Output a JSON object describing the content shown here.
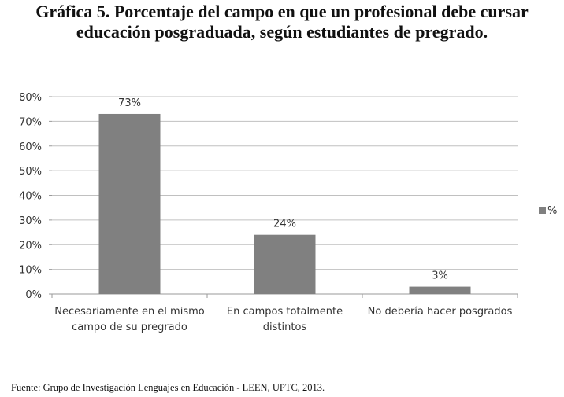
{
  "title_lines": [
    "Gráfica 5. Porcentaje del campo en que un profesional debe cursar",
    "educación posgraduada, según estudiantes de pregrado."
  ],
  "source": "Fuente: Grupo de Investigación Lenguajes en Educación - LEEN, UPTC, 2013.",
  "colors": {
    "bar": "#808080",
    "grid": "#c0c0c0",
    "axis": "#9a9a9a"
  },
  "chart_data": {
    "type": "bar",
    "categories": [
      [
        "Necesariamente en el mismo",
        "campo de su pregrado"
      ],
      [
        "En campos totalmente",
        "distintos"
      ],
      [
        "No debería hacer posgrados"
      ]
    ],
    "series": [
      {
        "name": "%",
        "values": [
          73,
          24,
          3
        ],
        "labels": [
          "73%",
          "24%",
          "3%"
        ]
      }
    ],
    "ylim": [
      0,
      80
    ],
    "yticks": [
      0,
      10,
      20,
      30,
      40,
      50,
      60,
      70,
      80
    ],
    "ytick_labels": [
      "0%",
      "10%",
      "20%",
      "30%",
      "40%",
      "50%",
      "60%",
      "70%",
      "80%"
    ],
    "grid": true,
    "legend": "right",
    "xlabel": "",
    "ylabel": ""
  }
}
